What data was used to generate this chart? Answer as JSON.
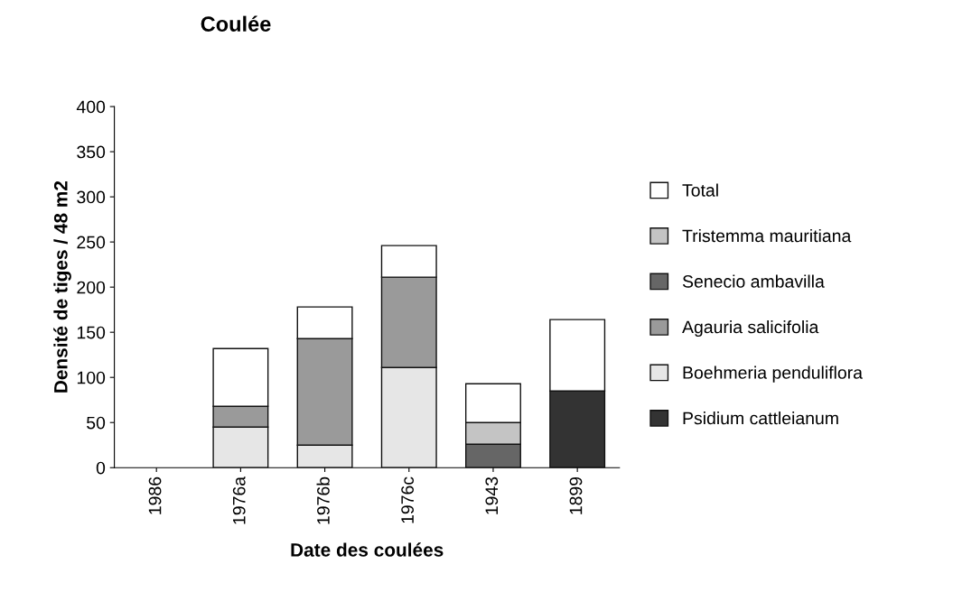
{
  "chart_data": {
    "type": "bar",
    "title": "Coulée",
    "xlabel": "Date des coulées",
    "ylabel": "Densité de tiges / 48 m2",
    "categories": [
      "1986",
      "1976a",
      "1976b",
      "1976c",
      "1943",
      "1899"
    ],
    "stacked": true,
    "ylim": [
      0,
      400
    ],
    "yticks": [
      0,
      50,
      100,
      150,
      200,
      250,
      300,
      350,
      400
    ],
    "grid": false,
    "legend": "right",
    "series": [
      {
        "name": "Psidium cattleianum",
        "color": "#333333",
        "values": [
          null,
          null,
          null,
          null,
          null,
          85
        ]
      },
      {
        "name": "Boehmeria penduliflora",
        "color": "#e6e6e6",
        "values": [
          null,
          45,
          25,
          111,
          null,
          null
        ]
      },
      {
        "name": "Agauria salicifolia",
        "color": "#9a9a9a",
        "values": [
          null,
          23,
          118,
          100,
          null,
          null
        ]
      },
      {
        "name": "Senecio ambavilla",
        "color": "#666666",
        "values": [
          null,
          null,
          null,
          null,
          26,
          null
        ]
      },
      {
        "name": "Tristemma mauritiana",
        "color": "#c4c4c4",
        "values": [
          null,
          null,
          null,
          null,
          24,
          null
        ]
      },
      {
        "name": "Total",
        "color": "#ffffff",
        "values": [
          null,
          64,
          35,
          35,
          43,
          79
        ]
      }
    ]
  }
}
